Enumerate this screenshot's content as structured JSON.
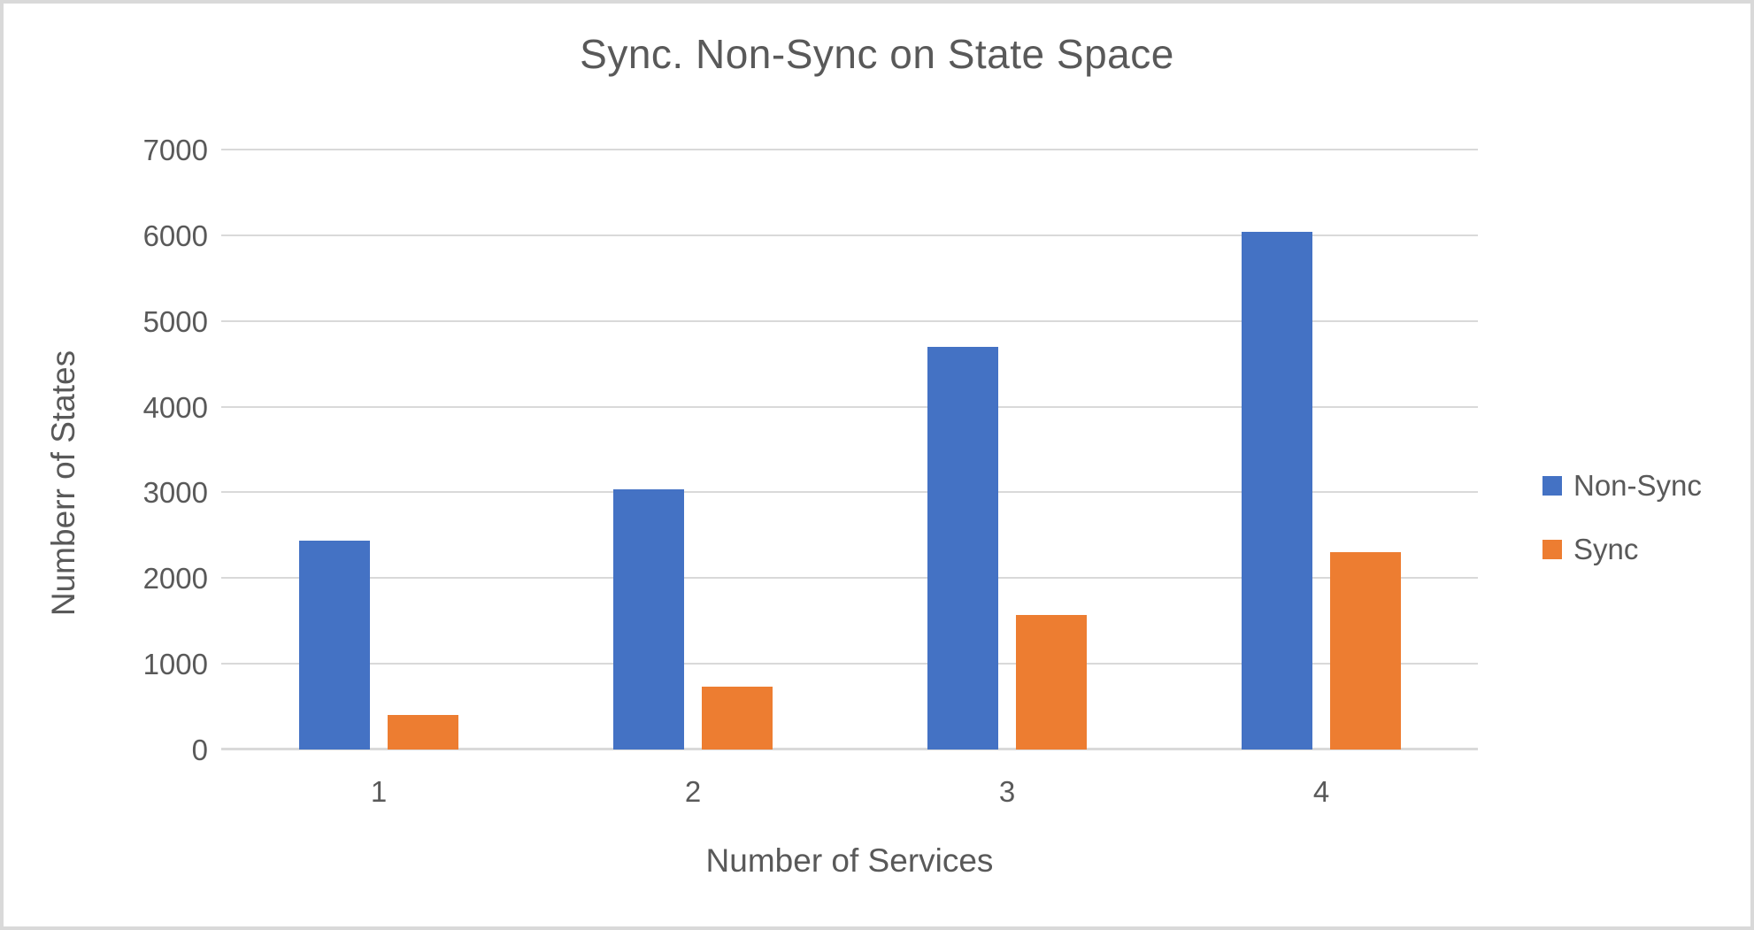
{
  "chart_data": {
    "type": "bar",
    "title": "Sync. Non-Sync on State Space",
    "xlabel": "Number of Services",
    "ylabel": "Numberr of States",
    "categories": [
      "1",
      "2",
      "3",
      "4"
    ],
    "series": [
      {
        "name": "Non-Sync",
        "color": "#4472C4",
        "values": [
          2440,
          3040,
          4700,
          6040
        ]
      },
      {
        "name": "Sync",
        "color": "#ED7D31",
        "values": [
          400,
          730,
          1570,
          2300
        ]
      }
    ],
    "ylim": [
      0,
      7000
    ],
    "yticks": [
      0,
      1000,
      2000,
      3000,
      4000,
      5000,
      6000,
      7000
    ],
    "grid": true,
    "legend_position": "right"
  },
  "colors": {
    "text": "#595959",
    "gridline": "#D9D9D9",
    "frame_border": "#D9D9D9",
    "background": "#FFFFFF",
    "non_sync": "#4472C4",
    "sync": "#ED7D31"
  }
}
